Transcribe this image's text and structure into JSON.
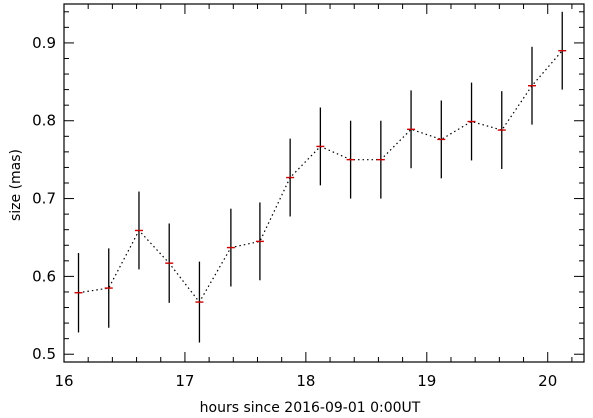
{
  "chart_data": {
    "type": "scatter",
    "xlabel": "hours since 2016-09-01 0:00UT",
    "ylabel": "size (mas)",
    "xlim": [
      16,
      20.3
    ],
    "ylim": [
      0.49,
      0.95
    ],
    "xticks": [
      16,
      17,
      18,
      19,
      20
    ],
    "xtick_labels": [
      "16",
      "17",
      "18",
      "19",
      "20"
    ],
    "yticks": [
      0.5,
      0.6,
      0.7,
      0.8,
      0.9
    ],
    "ytick_labels": [
      "0.5",
      "0.6",
      "0.7",
      "0.8",
      "0.9"
    ],
    "grid": false,
    "series": [
      {
        "x": [
          16.12,
          16.37,
          16.62,
          16.87,
          17.12,
          17.38,
          17.62,
          17.87,
          18.12,
          18.37,
          18.62,
          18.87,
          19.12,
          19.37,
          19.62,
          19.87,
          20.12
        ],
        "y": [
          0.579,
          0.585,
          0.659,
          0.617,
          0.567,
          0.637,
          0.645,
          0.727,
          0.767,
          0.75,
          0.75,
          0.789,
          0.776,
          0.799,
          0.788,
          0.845,
          0.89
        ],
        "error": [
          0.051,
          0.051,
          0.05,
          0.051,
          0.052,
          0.05,
          0.05,
          0.05,
          0.05,
          0.05,
          0.05,
          0.05,
          0.05,
          0.05,
          0.05,
          0.05,
          0.05
        ],
        "marker_color": "#cc0000",
        "line_style": "dotted",
        "line_color": "#000000"
      }
    ]
  }
}
